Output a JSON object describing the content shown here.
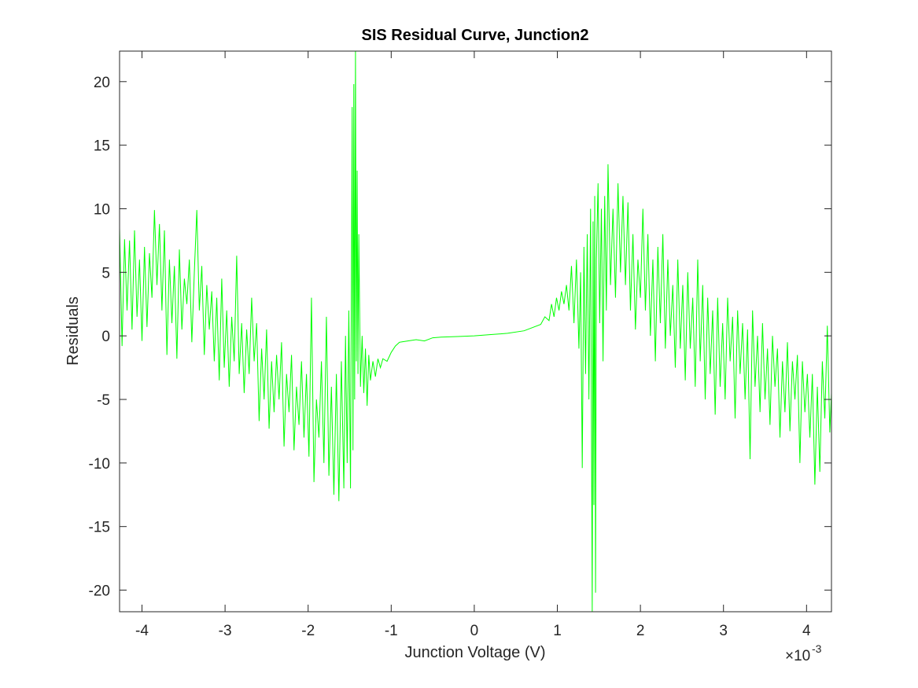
{
  "chart_data": {
    "type": "line",
    "title": "SIS Residual Curve, Junction2",
    "x_label": "Junction Voltage (V)",
    "y_label": "Residuals",
    "x_multiplier": "×10",
    "x_multiplier_exponent": "-3",
    "color": "#00ff00",
    "box": true,
    "xlim": [
      -4.27,
      4.3
    ],
    "ylim": [
      -21.7,
      22.4
    ],
    "xticks": [
      -4,
      -3,
      -2,
      -1,
      0,
      1,
      2,
      3,
      4
    ],
    "yticks": [
      -20,
      -15,
      -10,
      -5,
      0,
      5,
      10,
      15,
      20
    ],
    "x": [
      -4.27,
      -4.24,
      -4.21,
      -4.18,
      -4.15,
      -4.12,
      -4.09,
      -4.06,
      -4.03,
      -4.0,
      -3.97,
      -3.94,
      -3.91,
      -3.88,
      -3.85,
      -3.82,
      -3.79,
      -3.76,
      -3.73,
      -3.7,
      -3.67,
      -3.64,
      -3.61,
      -3.58,
      -3.55,
      -3.52,
      -3.49,
      -3.46,
      -3.43,
      -3.4,
      -3.37,
      -3.34,
      -3.31,
      -3.28,
      -3.25,
      -3.22,
      -3.19,
      -3.16,
      -3.13,
      -3.1,
      -3.07,
      -3.04,
      -3.01,
      -2.98,
      -2.95,
      -2.92,
      -2.89,
      -2.86,
      -2.83,
      -2.8,
      -2.77,
      -2.74,
      -2.71,
      -2.68,
      -2.65,
      -2.62,
      -2.59,
      -2.56,
      -2.53,
      -2.5,
      -2.47,
      -2.44,
      -2.41,
      -2.38,
      -2.35,
      -2.32,
      -2.29,
      -2.26,
      -2.23,
      -2.2,
      -2.17,
      -2.14,
      -2.11,
      -2.08,
      -2.05,
      -2.02,
      -1.99,
      -1.96,
      -1.93,
      -1.9,
      -1.87,
      -1.84,
      -1.81,
      -1.78,
      -1.75,
      -1.72,
      -1.69,
      -1.66,
      -1.63,
      -1.6,
      -1.57,
      -1.55,
      -1.53,
      -1.51,
      -1.49,
      -1.47,
      -1.46,
      -1.45,
      -1.44,
      -1.43,
      -1.42,
      -1.41,
      -1.4,
      -1.39,
      -1.37,
      -1.35,
      -1.33,
      -1.31,
      -1.29,
      -1.27,
      -1.25,
      -1.22,
      -1.19,
      -1.16,
      -1.13,
      -1.1,
      -1.05,
      -1,
      -0.95,
      -0.9,
      -0.8,
      -0.7,
      -0.6,
      -0.5,
      -0.4,
      -0.2,
      0,
      0.2,
      0.4,
      0.6,
      0.8,
      0.85,
      0.9,
      0.93,
      0.96,
      0.99,
      1.02,
      1.05,
      1.08,
      1.11,
      1.14,
      1.17,
      1.2,
      1.23,
      1.26,
      1.28,
      1.3,
      1.32,
      1.34,
      1.36,
      1.38,
      1.4,
      1.42,
      1.43,
      1.44,
      1.45,
      1.46,
      1.47,
      1.49,
      1.51,
      1.53,
      1.55,
      1.57,
      1.59,
      1.61,
      1.64,
      1.67,
      1.7,
      1.73,
      1.76,
      1.79,
      1.82,
      1.85,
      1.88,
      1.91,
      1.94,
      1.97,
      2,
      2.03,
      2.06,
      2.09,
      2.12,
      2.15,
      2.18,
      2.21,
      2.24,
      2.27,
      2.3,
      2.33,
      2.36,
      2.39,
      2.42,
      2.45,
      2.48,
      2.51,
      2.54,
      2.57,
      2.6,
      2.63,
      2.66,
      2.69,
      2.72,
      2.75,
      2.78,
      2.81,
      2.84,
      2.87,
      2.9,
      2.93,
      2.96,
      2.99,
      3.02,
      3.05,
      3.08,
      3.11,
      3.14,
      3.17,
      3.2,
      3.23,
      3.26,
      3.29,
      3.32,
      3.35,
      3.38,
      3.41,
      3.44,
      3.47,
      3.5,
      3.53,
      3.56,
      3.59,
      3.62,
      3.65,
      3.68,
      3.71,
      3.74,
      3.77,
      3.8,
      3.83,
      3.86,
      3.89,
      3.92,
      3.95,
      3.98,
      4.01,
      4.04,
      4.07,
      4.1,
      4.13,
      4.16,
      4.19,
      4.22,
      4.25,
      4.28,
      4.3
    ],
    "values": [
      8.5,
      -0.8,
      7.6,
      2,
      7.5,
      0.5,
      8.3,
      1.5,
      6,
      -0.4,
      7,
      0.7,
      6.5,
      3,
      9.9,
      4,
      8.8,
      2,
      8.3,
      -1.5,
      6,
      1,
      5.5,
      -1.8,
      6.8,
      0.5,
      4.5,
      2.5,
      6,
      -0.5,
      5,
      9.9,
      2,
      5.5,
      -1.5,
      4,
      0.5,
      3.5,
      -2,
      3,
      -3.5,
      4.5,
      -2.5,
      2,
      -4,
      1.5,
      -2,
      6.3,
      -3,
      1,
      -4.5,
      0.5,
      -3,
      3,
      -2,
      1,
      -6.7,
      -1,
      -5,
      0.5,
      -7.3,
      -2,
      -6,
      -1.5,
      -5,
      -0.5,
      -8.7,
      -3,
      -6,
      -1.5,
      -9,
      -4,
      -7,
      -2,
      -8,
      -3,
      -9.5,
      3,
      -11.5,
      -5,
      -8,
      -2,
      -10,
      1.5,
      -11,
      -4,
      -12.5,
      -3,
      -13,
      -2,
      -12,
      0,
      -10,
      2,
      -12,
      18,
      -9,
      19.8,
      -5,
      22.4,
      -2,
      13,
      -3,
      8,
      -4,
      0,
      -4.5,
      -1,
      -5.5,
      -1.5,
      -3.5,
      -2,
      -3.2,
      -1.8,
      -2.5,
      -1.8,
      -2,
      -1.3,
      -0.8,
      -0.5,
      -0.4,
      -0.3,
      -0.4,
      -0.15,
      -0.1,
      -0.05,
      0,
      0.1,
      0.2,
      0.4,
      0.9,
      1.5,
      1.2,
      2.5,
      1.5,
      3,
      2,
      3.5,
      2.5,
      4,
      2,
      5.5,
      1,
      6,
      -1,
      5,
      -10.4,
      7,
      -3,
      8,
      -5,
      10,
      -21.7,
      9,
      -13.3,
      11,
      -20.2,
      6,
      12,
      1,
      10,
      -2,
      11,
      2,
      13.5,
      4,
      10,
      3,
      12,
      5,
      11,
      4,
      10.5,
      2,
      8,
      0.5,
      6,
      3,
      10,
      2,
      8,
      0,
      6,
      -2,
      7,
      1,
      8,
      -1,
      6,
      0,
      4,
      -2.5,
      6,
      -1,
      4,
      -3.5,
      5,
      -1,
      3,
      -4,
      6,
      -2,
      4,
      -5,
      3,
      -3,
      2,
      -6.2,
      3,
      -4,
      1,
      -5,
      3,
      -2,
      1.5,
      -6.5,
      2,
      -3,
      1,
      -5,
      0.5,
      -9.7,
      2,
      -4,
      0,
      -6,
      1,
      -5,
      -1,
      -7,
      0,
      -4,
      -1,
      -8,
      -2,
      -6,
      -0.5,
      -7.5,
      -2,
      -5,
      -1.5,
      -10,
      -2,
      -6,
      -3,
      -8,
      -3,
      -11.7,
      -4,
      -10.7,
      -2,
      -6.5,
      0.8,
      -7.6,
      -4.5
    ]
  }
}
